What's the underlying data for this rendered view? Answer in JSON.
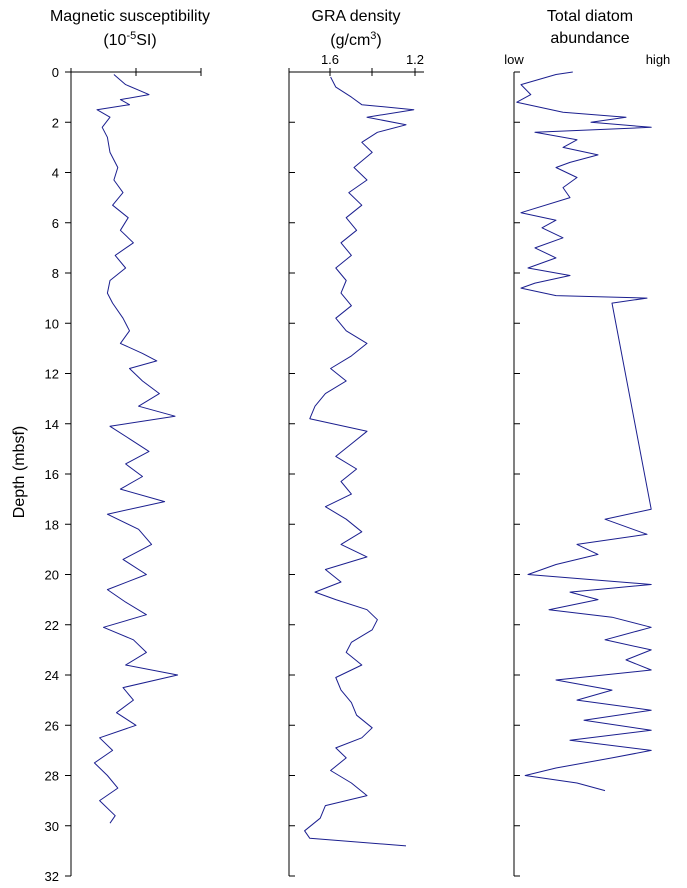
{
  "chart_data": [
    {
      "type": "line",
      "title_line1": "Magnetic susceptibility",
      "title_line2_base": "(10",
      "title_line2_sup": "-5",
      "title_line2_rest": "SI)",
      "ylabel": "Depth (mbsf)",
      "ylim": [
        0,
        32
      ],
      "y_ticks": [
        "0",
        "2",
        "4",
        "6",
        "8",
        "10",
        "12",
        "14",
        "16",
        "18",
        "20",
        "22",
        "24",
        "26",
        "28",
        "30",
        "32"
      ],
      "x_tick_labels": [],
      "series": [
        {
          "depth": [
            0.1,
            0.5,
            0.9,
            1.1,
            1.3,
            1.5,
            1.8,
            2.2,
            2.6,
            3.2,
            3.8,
            4.3,
            4.8,
            5.3,
            5.8,
            6.3,
            6.8,
            7.3,
            7.8,
            8.3,
            8.8,
            9.2,
            9.8,
            10.3,
            10.8,
            11.2,
            11.5,
            11.8,
            12.3,
            12.8,
            13.3,
            13.7,
            14.1,
            14.6,
            15.1,
            15.6,
            16.1,
            16.6,
            17.1,
            17.6,
            18.2,
            18.8,
            19.4,
            20.0,
            20.6,
            21.1,
            21.6,
            22.1,
            22.6,
            23.1,
            23.6,
            24.0,
            24.5,
            25.0,
            25.5,
            26.0,
            26.5,
            27.0,
            27.5,
            28.0,
            28.5,
            29.0,
            29.6,
            29.9
          ],
          "values": [
            0.33,
            0.42,
            0.6,
            0.38,
            0.45,
            0.2,
            0.3,
            0.24,
            0.28,
            0.3,
            0.36,
            0.33,
            0.4,
            0.32,
            0.44,
            0.38,
            0.48,
            0.34,
            0.42,
            0.3,
            0.28,
            0.32,
            0.4,
            0.45,
            0.38,
            0.55,
            0.66,
            0.45,
            0.55,
            0.68,
            0.52,
            0.8,
            0.3,
            0.45,
            0.6,
            0.42,
            0.55,
            0.38,
            0.72,
            0.28,
            0.52,
            0.62,
            0.4,
            0.58,
            0.28,
            0.42,
            0.58,
            0.25,
            0.48,
            0.58,
            0.42,
            0.82,
            0.4,
            0.48,
            0.35,
            0.5,
            0.22,
            0.32,
            0.18,
            0.28,
            0.36,
            0.22,
            0.34,
            0.3
          ]
        }
      ]
    },
    {
      "type": "line",
      "title_line1": "GRA density",
      "title_line2_base": "(g/cm",
      "title_line2_sup": "3",
      "title_line2_rest": ")",
      "ylim": [
        0,
        32
      ],
      "xlim_reversed": [
        1.7,
        1.2
      ],
      "x_tick_labels": [
        "1.6",
        "1.2"
      ],
      "series": [
        {
          "depth": [
            0.2,
            0.6,
            1.0,
            1.3,
            1.5,
            1.8,
            2.1,
            2.4,
            2.8,
            3.2,
            3.8,
            4.3,
            4.8,
            5.3,
            5.8,
            6.3,
            6.8,
            7.3,
            7.8,
            8.3,
            8.8,
            9.3,
            9.8,
            10.3,
            10.8,
            11.3,
            11.8,
            12.3,
            12.8,
            13.3,
            13.8,
            14.3,
            14.8,
            15.3,
            15.8,
            16.3,
            16.8,
            17.3,
            17.8,
            18.3,
            18.8,
            19.3,
            19.8,
            20.3,
            20.7,
            21.0,
            21.4,
            21.8,
            22.2,
            22.7,
            23.1,
            23.6,
            24.1,
            24.6,
            25.1,
            25.6,
            26.1,
            26.5,
            26.9,
            27.3,
            27.8,
            28.3,
            28.8,
            29.2,
            29.7,
            30.2,
            30.5,
            30.8
          ],
          "values": [
            1.54,
            1.52,
            1.46,
            1.42,
            1.22,
            1.4,
            1.25,
            1.36,
            1.42,
            1.38,
            1.45,
            1.4,
            1.47,
            1.42,
            1.48,
            1.44,
            1.5,
            1.46,
            1.52,
            1.48,
            1.5,
            1.46,
            1.52,
            1.48,
            1.4,
            1.46,
            1.54,
            1.48,
            1.56,
            1.6,
            1.62,
            1.4,
            1.46,
            1.52,
            1.44,
            1.5,
            1.46,
            1.56,
            1.48,
            1.42,
            1.5,
            1.4,
            1.56,
            1.5,
            1.6,
            1.52,
            1.4,
            1.36,
            1.38,
            1.46,
            1.48,
            1.42,
            1.52,
            1.5,
            1.46,
            1.44,
            1.38,
            1.42,
            1.52,
            1.48,
            1.54,
            1.46,
            1.4,
            1.56,
            1.58,
            1.64,
            1.62,
            1.25
          ]
        }
      ]
    },
    {
      "type": "line",
      "title_line1": "Total diatom",
      "title_line2": "abundance",
      "ylim": [
        0,
        32
      ],
      "xlim": [
        0,
        1
      ],
      "x_tick_labels": [
        "low",
        "high"
      ],
      "series": [
        {
          "depth": [
            0.0,
            0.1,
            0.5,
            0.9,
            1.2,
            1.6,
            1.8,
            2.0,
            2.2,
            2.4,
            2.7,
            3.0,
            3.3,
            3.6,
            3.8,
            4.2,
            4.6,
            5.0,
            5.6,
            5.9,
            6.2,
            6.6,
            7.0,
            7.4,
            7.8,
            8.1,
            8.4,
            8.6,
            8.9,
            9.0,
            9.2,
            17.4,
            17.8,
            18.4,
            18.8,
            19.2,
            19.6,
            20.0,
            20.4,
            20.7,
            21.0,
            21.4,
            21.7,
            22.1,
            22.6,
            23.0,
            23.4,
            23.8,
            24.2,
            24.6,
            25.0,
            25.4,
            25.8,
            26.2,
            26.6,
            27.0,
            27.3,
            27.7,
            28.0,
            28.3,
            28.6
          ],
          "values": [
            0.42,
            0.3,
            0.05,
            0.12,
            0.02,
            0.35,
            0.8,
            0.55,
            0.98,
            0.15,
            0.45,
            0.35,
            0.6,
            0.4,
            0.3,
            0.45,
            0.35,
            0.4,
            0.05,
            0.3,
            0.2,
            0.35,
            0.15,
            0.3,
            0.1,
            0.4,
            0.15,
            0.05,
            0.3,
            0.95,
            0.7,
            0.98,
            0.65,
            0.95,
            0.45,
            0.6,
            0.3,
            0.1,
            0.98,
            0.4,
            0.6,
            0.25,
            0.7,
            0.98,
            0.65,
            0.98,
            0.8,
            0.98,
            0.3,
            0.7,
            0.45,
            0.98,
            0.5,
            0.98,
            0.4,
            0.98,
            0.7,
            0.3,
            0.08,
            0.45,
            0.65
          ]
        }
      ]
    }
  ]
}
